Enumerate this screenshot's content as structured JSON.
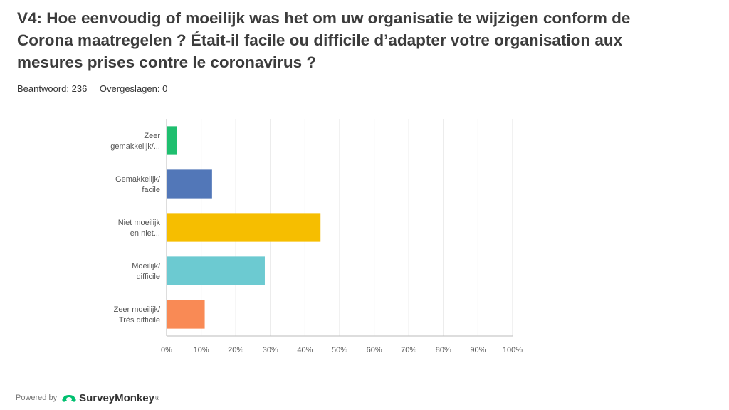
{
  "question": {
    "title": "V4: Hoe eenvoudig of moeilijk was het om uw organisatie te wijzigen conform de Corona maatregelen ? Était-il facile ou difficile d’adapter votre organisation aux mesures prises contre le coronavirus ?"
  },
  "stats": {
    "answered": "Beantwoord: 236",
    "skipped": "Overgeslagen: 0"
  },
  "footer": {
    "powered_by": "Powered by",
    "brand": "SurveyMonkey",
    "trademark": "®"
  },
  "colors": {
    "grid": "#e3e3e3",
    "axis": "#bbbbbb",
    "label": "#555555",
    "brand_green": "#00bf6f"
  },
  "icons": {
    "brand_logo": "surveymonkey-logo-icon"
  },
  "chart_data": {
    "type": "bar",
    "orientation": "horizontal",
    "categories": [
      [
        "Zeer",
        "gemakkelijk/..."
      ],
      [
        "Gemakkelijk/",
        "facile"
      ],
      [
        "Niet moeilijk",
        "en niet..."
      ],
      [
        "Moeilijk/",
        "difficile"
      ],
      [
        "Zeer moeilijk/",
        "Très difficile"
      ]
    ],
    "values": [
      2.97,
      13.14,
      44.49,
      28.39,
      11.02
    ],
    "colors": [
      "#1fbf6f",
      "#5277b8",
      "#f6be00",
      "#6ccad1",
      "#f98a55"
    ],
    "xlim": [
      0,
      100
    ],
    "xticks": [
      0,
      10,
      20,
      30,
      40,
      50,
      60,
      70,
      80,
      90,
      100
    ],
    "xtick_labels": [
      "0%",
      "10%",
      "20%",
      "30%",
      "40%",
      "50%",
      "60%",
      "70%",
      "80%",
      "90%",
      "100%"
    ],
    "grid": true,
    "legend": false
  }
}
